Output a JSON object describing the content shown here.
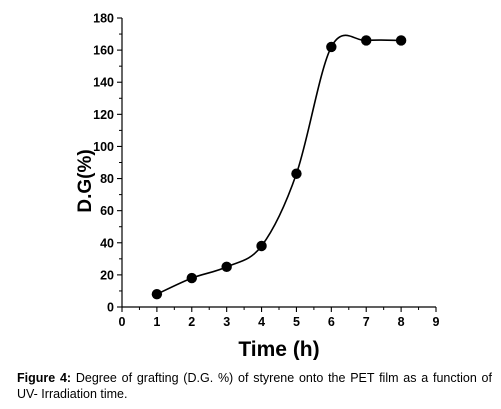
{
  "chart_data": {
    "type": "line",
    "title": "",
    "xlabel": "Time (h)",
    "ylabel": "D.G(%)",
    "xlim": [
      0,
      9
    ],
    "ylim": [
      0,
      180
    ],
    "xticks": [
      0,
      1,
      2,
      3,
      4,
      5,
      6,
      7,
      8,
      9
    ],
    "yticks": [
      0,
      20,
      40,
      60,
      80,
      100,
      120,
      140,
      160,
      180
    ],
    "grid": false,
    "legend": "none",
    "series": [
      {
        "x": [
          1,
          2,
          3,
          4,
          5,
          6,
          7,
          8
        ],
        "y": [
          8,
          18,
          25,
          38,
          83,
          162,
          166,
          166
        ]
      }
    ],
    "marker_color": "#000000",
    "line_color": "#000000"
  },
  "caption": {
    "label": "Figure 4:",
    "text": " Degree of grafting (D.G. %) of styrene onto the PET film as a function of UV- Irradiation time."
  }
}
